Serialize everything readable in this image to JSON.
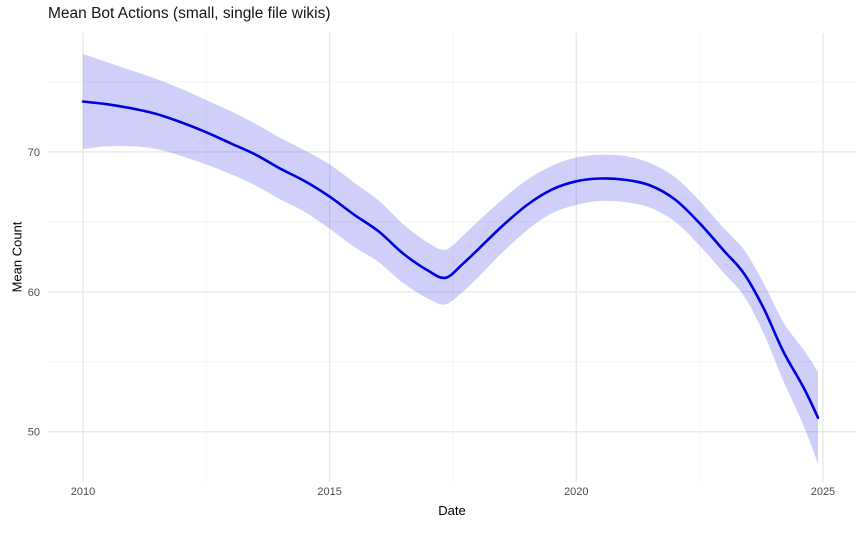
{
  "chart_data": {
    "type": "line",
    "title": "Mean Bot Actions (small, single file wikis)",
    "xlabel": "Date",
    "ylabel": "Mean Count",
    "x_major_ticks": [
      2010,
      2015,
      2020,
      2025
    ],
    "x_minor_gridlines": [
      2012.5,
      2017.5,
      2022.5
    ],
    "y_major_ticks": [
      50,
      60,
      70
    ],
    "y_minor_gridlines": [
      55,
      65,
      75
    ],
    "xlim": [
      2009.29,
      2025.67
    ],
    "ylim": [
      46.4,
      78.5
    ],
    "legend": "none",
    "grid": "major and minor horizontal/vertical gridlines, light grey, no axis lines, no tick marks",
    "series": [
      {
        "name": "smoothed-mean-with-confidence-ribbon",
        "x": [
          2010,
          2010.5,
          2011,
          2011.5,
          2012,
          2012.5,
          2013,
          2013.5,
          2014,
          2014.5,
          2015,
          2015.5,
          2016,
          2016.5,
          2017,
          2017.35,
          2017.7,
          2018,
          2018.5,
          2019,
          2019.5,
          2020,
          2020.5,
          2021,
          2021.5,
          2022,
          2022.5,
          2023,
          2023.4,
          2023.8,
          2024.2,
          2024.6,
          2024.9
        ],
        "y": [
          73.6,
          73.4,
          73.1,
          72.7,
          72.1,
          71.4,
          70.6,
          69.8,
          68.8,
          67.9,
          66.8,
          65.5,
          64.3,
          62.7,
          61.5,
          61.0,
          62.0,
          63.0,
          64.7,
          66.2,
          67.3,
          67.9,
          68.1,
          68.0,
          67.6,
          66.6,
          64.9,
          62.9,
          61.3,
          58.8,
          55.7,
          53.2,
          51.0
        ],
        "y_lower": [
          70.2,
          70.4,
          70.4,
          70.2,
          69.7,
          69.1,
          68.4,
          67.6,
          66.6,
          65.7,
          64.5,
          63.2,
          62.1,
          60.6,
          59.5,
          59.1,
          60.0,
          61.0,
          62.8,
          64.4,
          65.6,
          66.2,
          66.5,
          66.4,
          66.0,
          65.0,
          63.3,
          61.3,
          59.7,
          57.0,
          53.6,
          50.5,
          47.7
        ],
        "y_upper": [
          77.0,
          76.4,
          75.8,
          75.2,
          74.5,
          73.7,
          72.9,
          72.0,
          71.0,
          70.1,
          69.1,
          67.8,
          66.5,
          64.8,
          63.5,
          63.0,
          64.0,
          65.0,
          66.6,
          68.0,
          69.0,
          69.6,
          69.8,
          69.7,
          69.2,
          68.2,
          66.5,
          64.5,
          63.0,
          60.6,
          57.8,
          55.9,
          54.3
        ]
      }
    ],
    "colors": {
      "line": "#0000dd",
      "ribbon": "rgba(0,0,225,0.19)",
      "grid_major": "#e9e9e9",
      "grid_minor": "#f4f4f4",
      "tick_label": "#4d4d4d",
      "title_text": "#141414"
    }
  }
}
